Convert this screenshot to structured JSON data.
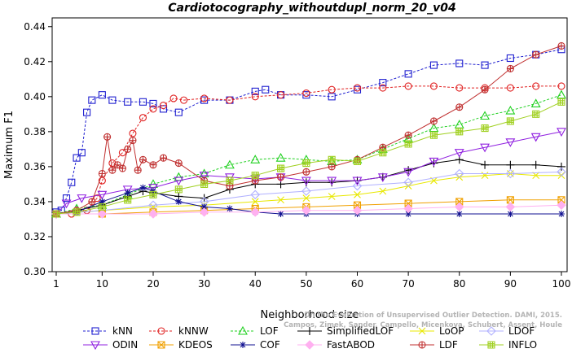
{
  "chart_data": {
    "type": "line",
    "title": "Cardiotocography_withoutdupl_norm_20_v04",
    "xlabel": "Neighborhood size",
    "ylabel": "Maximum F1",
    "xlim": [
      1,
      100
    ],
    "ylim": [
      0.3,
      0.445
    ],
    "x_ticks": [
      1,
      10,
      20,
      30,
      40,
      50,
      60,
      70,
      80,
      90,
      100
    ],
    "y_ticks": [
      0.3,
      0.32,
      0.34,
      0.36,
      0.38,
      0.4,
      0.42,
      0.44
    ],
    "y_tick_labels": [
      "0.30",
      "0.32",
      "0.34",
      "0.36",
      "0.38",
      "0.40",
      "0.42",
      "0.44"
    ],
    "grid": false,
    "legend_position": "bottom",
    "watermark": [
      "Campos, Zimek, Sander, Campello, Micenkova, Schubert, Assent, Houle",
      "On the Evaluation of Unsupervised Outlier Detection. DAMI, 2015."
    ],
    "series": [
      {
        "name": "kNN",
        "color": "#2020d0",
        "marker": "square",
        "dash": "3,2",
        "x": [
          1,
          2,
          3,
          4,
          5,
          6,
          7,
          8,
          10,
          12,
          15,
          18,
          20,
          22,
          25,
          30,
          35,
          40,
          42,
          45,
          50,
          55,
          60,
          65,
          70,
          75,
          80,
          85,
          90,
          95,
          100
        ],
        "y": [
          0.334,
          0.335,
          0.342,
          0.351,
          0.365,
          0.368,
          0.391,
          0.398,
          0.401,
          0.398,
          0.397,
          0.397,
          0.396,
          0.393,
          0.391,
          0.398,
          0.398,
          0.403,
          0.404,
          0.401,
          0.401,
          0.4,
          0.404,
          0.408,
          0.413,
          0.418,
          0.419,
          0.418,
          0.422,
          0.424,
          0.427
        ]
      },
      {
        "name": "kNNW",
        "color": "#e02020",
        "marker": "circle",
        "dash": "3,2",
        "x": [
          1,
          4,
          7,
          9,
          10,
          12,
          14,
          16,
          18,
          20,
          22,
          24,
          26,
          30,
          35,
          40,
          45,
          50,
          55,
          60,
          65,
          70,
          75,
          80,
          85,
          90,
          95,
          100
        ],
        "y": [
          0.333,
          0.333,
          0.335,
          0.342,
          0.352,
          0.362,
          0.368,
          0.379,
          0.388,
          0.393,
          0.395,
          0.399,
          0.398,
          0.399,
          0.398,
          0.4,
          0.401,
          0.402,
          0.404,
          0.405,
          0.405,
          0.406,
          0.406,
          0.405,
          0.405,
          0.405,
          0.406,
          0.406
        ]
      },
      {
        "name": "LOF",
        "color": "#20d020",
        "marker": "triangle-up",
        "dash": "3,2",
        "x": [
          1,
          5,
          10,
          15,
          20,
          25,
          30,
          35,
          40,
          45,
          50,
          55,
          60,
          65,
          70,
          75,
          80,
          85,
          90,
          95,
          100
        ],
        "y": [
          0.333,
          0.336,
          0.338,
          0.344,
          0.35,
          0.354,
          0.356,
          0.361,
          0.364,
          0.365,
          0.364,
          0.363,
          0.364,
          0.37,
          0.376,
          0.382,
          0.384,
          0.389,
          0.392,
          0.396,
          0.401
        ]
      },
      {
        "name": "SimplifiedLOF",
        "color": "#000000",
        "marker": "plus",
        "dash": "",
        "x": [
          1,
          5,
          10,
          15,
          18,
          20,
          25,
          30,
          35,
          40,
          45,
          50,
          55,
          60,
          65,
          70,
          75,
          80,
          85,
          90,
          95,
          100
        ],
        "y": [
          0.333,
          0.335,
          0.338,
          0.343,
          0.346,
          0.345,
          0.343,
          0.342,
          0.347,
          0.35,
          0.35,
          0.351,
          0.351,
          0.352,
          0.354,
          0.358,
          0.362,
          0.364,
          0.361,
          0.361,
          0.361,
          0.36
        ]
      },
      {
        "name": "LoOP",
        "color": "#e8e800",
        "marker": "cross",
        "dash": "",
        "x": [
          1,
          10,
          20,
          30,
          40,
          45,
          50,
          55,
          60,
          65,
          70,
          75,
          80,
          85,
          90,
          95,
          100
        ],
        "y": [
          0.333,
          0.335,
          0.337,
          0.338,
          0.34,
          0.341,
          0.342,
          0.343,
          0.344,
          0.346,
          0.349,
          0.352,
          0.354,
          0.355,
          0.356,
          0.355,
          0.355
        ]
      },
      {
        "name": "LDOF",
        "color": "#b0b0ff",
        "marker": "diamond",
        "dash": "",
        "x": [
          1,
          10,
          20,
          30,
          40,
          50,
          60,
          70,
          80,
          90,
          100
        ],
        "y": [
          0.333,
          0.335,
          0.338,
          0.34,
          0.344,
          0.346,
          0.349,
          0.351,
          0.356,
          0.356,
          0.357
        ]
      },
      {
        "name": "ODIN",
        "color": "#9020e0",
        "marker": "triangle-down",
        "dash": "",
        "x": [
          1,
          3,
          6,
          10,
          15,
          20,
          25,
          30,
          35,
          40,
          45,
          50,
          55,
          60,
          65,
          70,
          75,
          80,
          85,
          90,
          95,
          100
        ],
        "y": [
          0.333,
          0.339,
          0.342,
          0.344,
          0.347,
          0.348,
          0.352,
          0.355,
          0.354,
          0.353,
          0.354,
          0.352,
          0.352,
          0.352,
          0.354,
          0.357,
          0.363,
          0.368,
          0.371,
          0.374,
          0.377,
          0.38
        ]
      },
      {
        "name": "KDEOS",
        "color": "#f0a000",
        "marker": "square-x",
        "dash": "",
        "x": [
          1,
          10,
          20,
          30,
          40,
          50,
          60,
          70,
          80,
          90,
          100
        ],
        "y": [
          0.333,
          0.333,
          0.334,
          0.335,
          0.336,
          0.337,
          0.338,
          0.339,
          0.34,
          0.341,
          0.341
        ]
      },
      {
        "name": "COF",
        "color": "#101090",
        "marker": "asterisk",
        "dash": "",
        "x": [
          1,
          5,
          10,
          15,
          18,
          20,
          25,
          30,
          35,
          40,
          45,
          50,
          60,
          70,
          80,
          90,
          100
        ],
        "y": [
          0.333,
          0.334,
          0.34,
          0.345,
          0.348,
          0.346,
          0.34,
          0.337,
          0.336,
          0.334,
          0.333,
          0.333,
          0.333,
          0.333,
          0.333,
          0.333,
          0.333
        ]
      },
      {
        "name": "FastABOD",
        "color": "#ffb0f0",
        "marker": "diamond-filled",
        "dash": "",
        "x": [
          1,
          10,
          20,
          30,
          40,
          50,
          60,
          70,
          80,
          90,
          100
        ],
        "y": [
          0.333,
          0.333,
          0.333,
          0.334,
          0.334,
          0.335,
          0.335,
          0.336,
          0.337,
          0.337,
          0.338
        ]
      },
      {
        "name": "LDF",
        "color": "#c03030",
        "marker": "circle-plus",
        "dash": "",
        "x": [
          1,
          5,
          8,
          10,
          11,
          12,
          13,
          14,
          15,
          16,
          17,
          18,
          20,
          22,
          25,
          30,
          35,
          40,
          45,
          50,
          55,
          60,
          65,
          70,
          75,
          80,
          85,
          90,
          95,
          100
        ],
        "y": [
          0.333,
          0.335,
          0.34,
          0.356,
          0.377,
          0.358,
          0.361,
          0.359,
          0.37,
          0.375,
          0.358,
          0.364,
          0.361,
          0.365,
          0.362,
          0.352,
          0.349,
          0.352,
          0.354,
          0.357,
          0.36,
          0.364,
          0.371,
          0.378,
          0.386,
          0.394,
          0.404,
          0.416,
          0.424,
          0.429
        ]
      },
      {
        "name": "INFLO",
        "color": "#a0d020",
        "marker": "hash",
        "dash": "",
        "x": [
          1,
          5,
          10,
          15,
          20,
          25,
          30,
          35,
          40,
          45,
          50,
          55,
          60,
          65,
          70,
          75,
          80,
          85,
          90,
          95,
          100
        ],
        "y": [
          0.333,
          0.334,
          0.337,
          0.341,
          0.344,
          0.347,
          0.35,
          0.352,
          0.355,
          0.359,
          0.362,
          0.364,
          0.363,
          0.368,
          0.373,
          0.378,
          0.38,
          0.382,
          0.386,
          0.39,
          0.397
        ]
      }
    ]
  }
}
